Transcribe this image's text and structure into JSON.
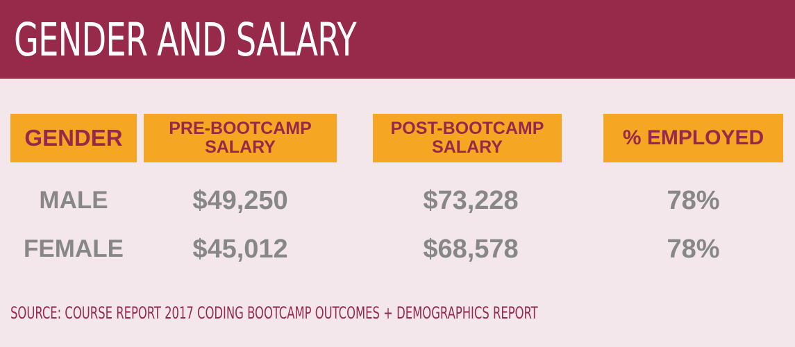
{
  "header": {
    "title": "GENDER AND SALARY",
    "background_color": "#97294a"
  },
  "table": {
    "header_color": "#f5a623",
    "header_text_color": "#96294b",
    "value_text_color": "#878787",
    "columns": [
      {
        "label": "GENDER"
      },
      {
        "label": "PRE-BOOTCAMP\nSALARY"
      },
      {
        "label": "POST-BOOTCAMP\nSALARY"
      },
      {
        "label": "% EMPLOYED"
      }
    ],
    "rows": [
      {
        "gender": "MALE",
        "pre_salary": "$49,250",
        "post_salary": "$73,228",
        "employed": "78%"
      },
      {
        "gender": "FEMALE",
        "pre_salary": "$45,012",
        "post_salary": "$68,578",
        "employed": "78%"
      }
    ]
  },
  "footer": {
    "source": "SOURCE: COURSE REPORT 2017 CODING BOOTCAMP OUTCOMES + DEMOGRAPHICS REPORT"
  }
}
